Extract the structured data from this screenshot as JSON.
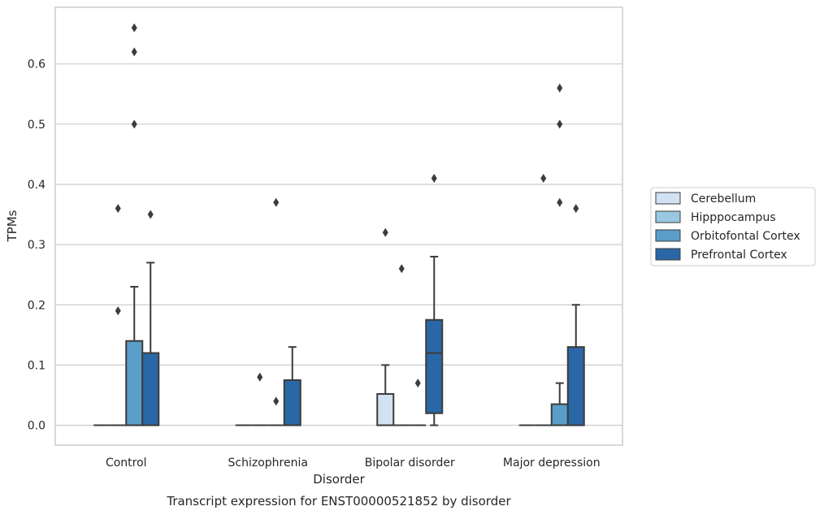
{
  "chart_data": {
    "type": "box",
    "caption": "Transcript expression for ENST00000521852 by disorder",
    "xlabel": "Disorder",
    "ylabel": "TPMs",
    "ylim": [
      -0.033,
      0.694
    ],
    "yticks": [
      "0.0",
      "0.1",
      "0.2",
      "0.3",
      "0.4",
      "0.5",
      "0.6"
    ],
    "grid": "horizontal",
    "legend_position": "right",
    "categories": [
      "Control",
      "Schizophrenia",
      "Bipolar disorder",
      "Major depression"
    ],
    "series": [
      {
        "name": "Cerebellum",
        "color": "#d1e2f2",
        "boxes": [
          {
            "q1": 0,
            "median": 0,
            "q3": 0,
            "whisker_low": 0,
            "whisker_high": 0,
            "outliers": []
          },
          {
            "q1": 0,
            "median": 0,
            "q3": 0,
            "whisker_low": 0,
            "whisker_high": 0,
            "outliers": []
          },
          {
            "q1": 0,
            "median": 0,
            "q3": 0.052,
            "whisker_low": 0,
            "whisker_high": 0.1,
            "outliers": [
              0.32
            ]
          },
          {
            "q1": 0,
            "median": 0,
            "q3": 0,
            "whisker_low": 0,
            "whisker_high": 0,
            "outliers": []
          }
        ]
      },
      {
        "name": "Hipppocampus",
        "color": "#9ac8e0",
        "boxes": [
          {
            "q1": 0,
            "median": 0,
            "q3": 0,
            "whisker_low": 0,
            "whisker_high": 0,
            "outliers": [
              0.36,
              0.19
            ]
          },
          {
            "q1": 0,
            "median": 0,
            "q3": 0,
            "whisker_low": 0,
            "whisker_high": 0,
            "outliers": [
              0.08
            ]
          },
          {
            "q1": 0,
            "median": 0,
            "q3": 0,
            "whisker_low": 0,
            "whisker_high": 0,
            "outliers": [
              0.26
            ]
          },
          {
            "q1": 0,
            "median": 0,
            "q3": 0,
            "whisker_low": 0,
            "whisker_high": 0,
            "outliers": [
              0.41
            ]
          }
        ]
      },
      {
        "name": "Orbitofontal Cortex",
        "color": "#5a9dc8",
        "boxes": [
          {
            "q1": 0,
            "median": 0,
            "q3": 0.14,
            "whisker_low": 0,
            "whisker_high": 0.23,
            "outliers": [
              0.66,
              0.62,
              0.5
            ]
          },
          {
            "q1": 0,
            "median": 0,
            "q3": 0,
            "whisker_low": 0,
            "whisker_high": 0,
            "outliers": [
              0.37,
              0.04
            ]
          },
          {
            "q1": 0,
            "median": 0,
            "q3": 0,
            "whisker_low": 0,
            "whisker_high": 0,
            "outliers": [
              0.07
            ]
          },
          {
            "q1": 0,
            "median": 0,
            "q3": 0.035,
            "whisker_low": 0,
            "whisker_high": 0.07,
            "outliers": [
              0.56,
              0.5,
              0.37
            ]
          }
        ]
      },
      {
        "name": "Prefrontal Cortex",
        "color": "#2a67a6",
        "boxes": [
          {
            "q1": 0,
            "median": 0,
            "q3": 0.12,
            "whisker_low": 0,
            "whisker_high": 0.27,
            "outliers": [
              0.35
            ]
          },
          {
            "q1": 0,
            "median": 0,
            "q3": 0.075,
            "whisker_low": 0,
            "whisker_high": 0.13,
            "outliers": []
          },
          {
            "q1": 0.02,
            "median": 0.12,
            "q3": 0.175,
            "whisker_low": 0,
            "whisker_high": 0.28,
            "outliers": [
              0.41
            ]
          },
          {
            "q1": 0,
            "median": 0,
            "q3": 0.13,
            "whisker_low": 0,
            "whisker_high": 0.2,
            "outliers": [
              0.36
            ]
          }
        ]
      }
    ]
  }
}
